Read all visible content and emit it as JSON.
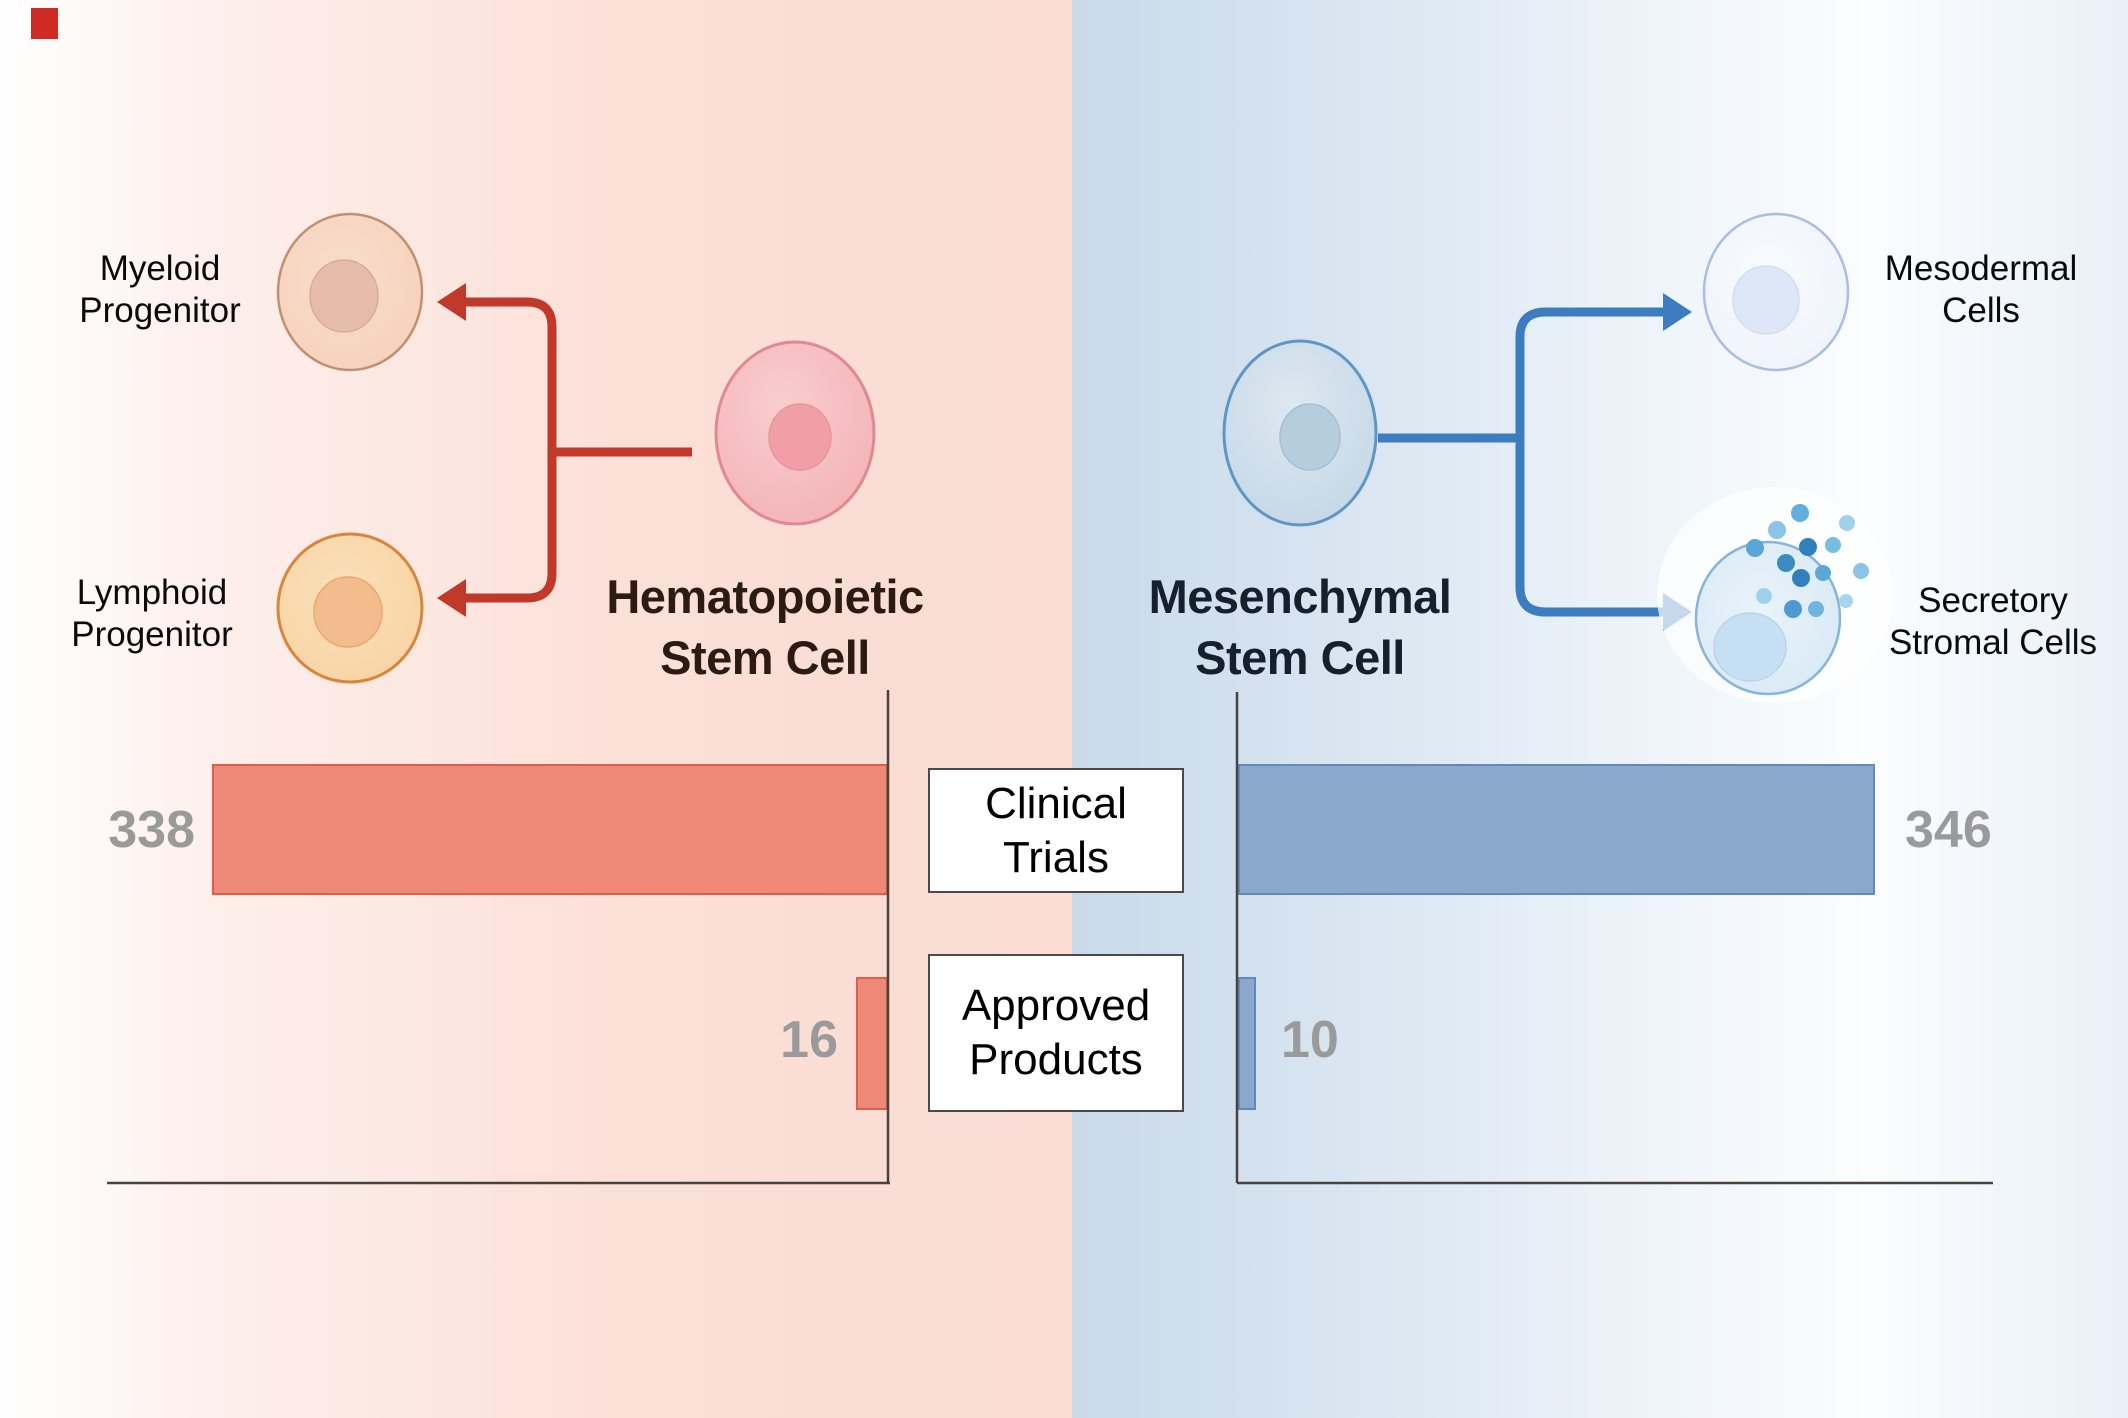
{
  "figure": {
    "left_panel": {
      "title_lines": [
        "Hematopoietic",
        "Stem Cell"
      ],
      "progenitors": {
        "myeloid": [
          "Myeloid",
          "Progenitor"
        ],
        "lymphoid": [
          "Lymphoid",
          "Progenitor"
        ]
      }
    },
    "right_panel": {
      "title_lines": [
        "Mesenchymal",
        "Stem Cell"
      ],
      "derivatives": {
        "mesodermal": [
          "Mesodermal",
          "Cells"
        ],
        "secretory": [
          "Secretory",
          "Stromal Cells"
        ]
      }
    },
    "metric_labels": {
      "clinical_trials": "Clinical Trials",
      "approved_products": "Approved Products"
    }
  },
  "chart_data": {
    "type": "bar",
    "orientation": "horizontal",
    "categories": [
      "Clinical Trials",
      "Approved Products"
    ],
    "series": [
      {
        "name": "Hematopoietic Stem Cell",
        "values": [
          338,
          16
        ]
      },
      {
        "name": "Mesenchymal Stem Cell",
        "values": [
          346,
          10
        ]
      }
    ],
    "value_labels_color": "#9a9a9a",
    "legend_position": "none",
    "grid": false
  },
  "theme": {
    "left_accent": "#c0392b",
    "right_accent": "#3d7dbf",
    "left_bar_fill": "#ed8976",
    "left_bar_border": "#dd5f4a",
    "right_bar_fill": "#8aa9cd",
    "right_bar_border": "#6389ba",
    "axis_color": "#48433e",
    "number_color": "#9a9a9a",
    "left_title_color": "#2b1b13",
    "right_title_color": "#15202c"
  }
}
